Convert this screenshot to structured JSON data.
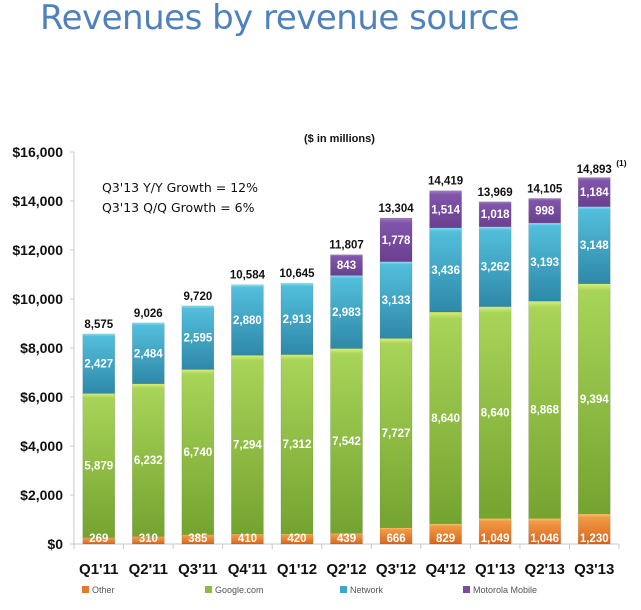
{
  "page": {
    "title": "Revenues by revenue source"
  },
  "chart_data": {
    "type": "bar",
    "stacked": true,
    "title": "Revenues by revenue source",
    "subtitle": "($ in millions)",
    "xlabel": "",
    "ylabel": "",
    "ylim": [
      0,
      16000
    ],
    "yticks": [
      0,
      2000,
      4000,
      6000,
      8000,
      10000,
      12000,
      14000,
      16000
    ],
    "ytick_labels": [
      "$0",
      "$2,000",
      "$4,000",
      "$6,000",
      "$8,000",
      "$10,000",
      "$12,000",
      "$14,000",
      "$16,000"
    ],
    "grid": false,
    "legend_position": "bottom",
    "categories": [
      "Q1'11",
      "Q2'11",
      "Q3'11",
      "Q4'11",
      "Q1'12",
      "Q2'12",
      "Q3'12",
      "Q4'12",
      "Q1'13",
      "Q2'13",
      "Q3'13"
    ],
    "series": [
      {
        "name": "Other",
        "color": "#e8792a",
        "values": [
          269,
          310,
          385,
          410,
          420,
          439,
          666,
          829,
          1049,
          1046,
          1230
        ]
      },
      {
        "name": "Google.com",
        "color": "#8cbc3c",
        "values": [
          5879,
          6232,
          6740,
          7294,
          7312,
          7542,
          7727,
          8640,
          8640,
          8868,
          9394
        ]
      },
      {
        "name": "Network",
        "color": "#3ea7c8",
        "values": [
          2427,
          2484,
          2595,
          2880,
          2913,
          2983,
          3133,
          3436,
          3262,
          3193,
          3148
        ]
      },
      {
        "name": "Motorola Mobile",
        "color": "#7a4b9e",
        "values": [
          0,
          0,
          0,
          0,
          0,
          843,
          1778,
          1514,
          1018,
          998,
          1184
        ]
      }
    ],
    "totals": [
      8575,
      9026,
      9720,
      10584,
      10645,
      11807,
      13304,
      14419,
      13969,
      14105,
      14893
    ],
    "total_labels": [
      "8,575",
      "9,026",
      "9,720",
      "10,584",
      "10,645",
      "11,807",
      "13,304",
      "14,419",
      "13,969",
      "14,105",
      "14,893"
    ],
    "footnote_marker": "(1)",
    "footnote_category": "Q3'13",
    "annotations": [
      "Q3'13 Y/Y Growth = 12%",
      "Q3'13 Q/Q Growth = 6%"
    ]
  }
}
